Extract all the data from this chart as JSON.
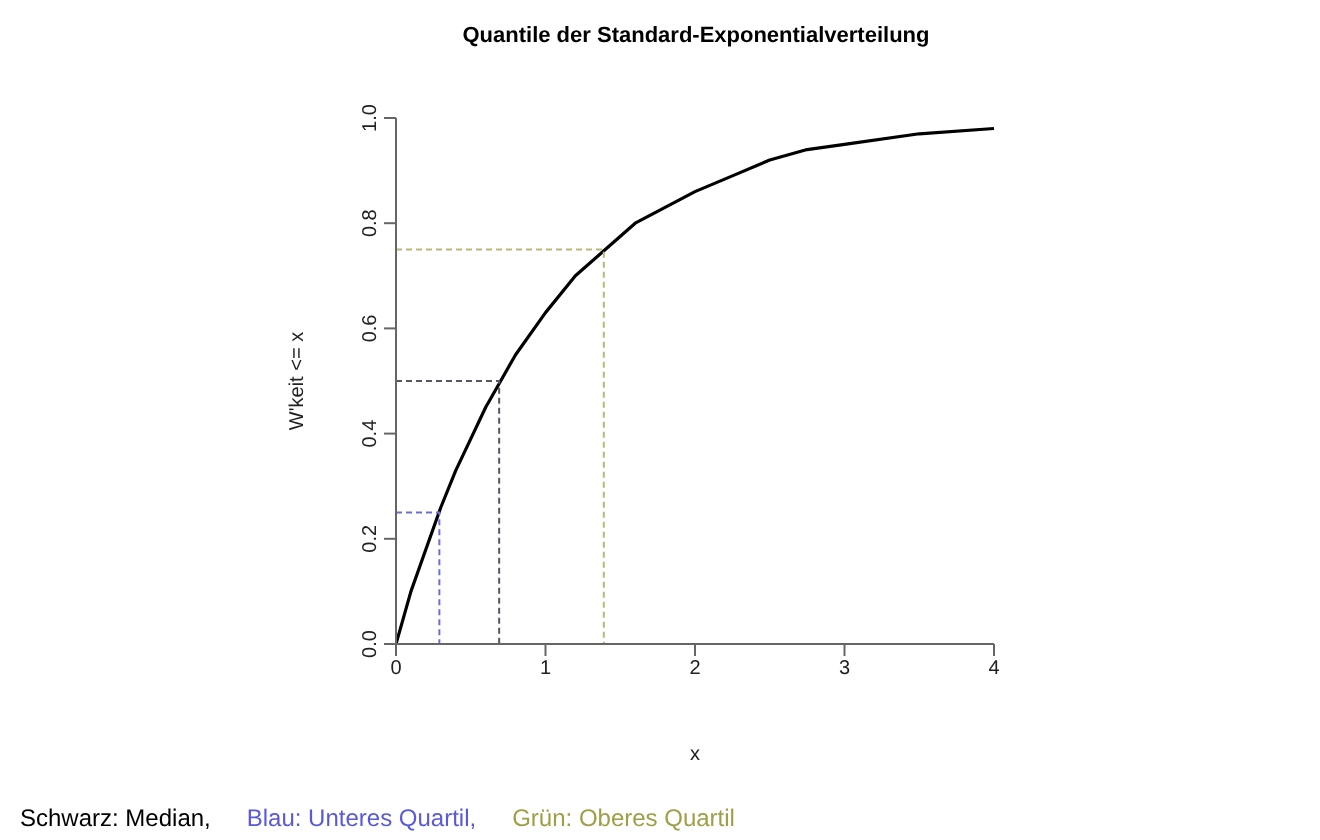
{
  "chart_data": {
    "type": "line",
    "title": "Quantile der Standard-Exponentialverteilung",
    "xlabel": "x",
    "ylabel": "W'keit <= x",
    "xlim": [
      0,
      4
    ],
    "xticks": [
      0,
      1,
      2,
      3,
      4
    ],
    "ylim": [
      0,
      1
    ],
    "yticks": [
      {
        "value": 0,
        "label": "0.0"
      },
      {
        "value": 0.2,
        "label": "0.2"
      },
      {
        "value": 0.4,
        "label": "0.4"
      },
      {
        "value": 0.6,
        "label": "0.6"
      },
      {
        "value": 0.8,
        "label": "0.8"
      },
      {
        "value": 1,
        "label": "1.0"
      }
    ],
    "marker": "none",
    "series": [
      {
        "color": "#000000",
        "line_style": "solid",
        "x": [
          0,
          0.1,
          0.2,
          0.3,
          0.4,
          0.5,
          0.6,
          0.7,
          0.8,
          1,
          1.2,
          1.4,
          1.6,
          1.8,
          2,
          2.25,
          2.5,
          2.75,
          3,
          3.5,
          4
        ],
        "values": [
          0,
          0.1,
          0.18,
          0.26,
          0.33,
          0.39,
          0.45,
          0.5,
          0.55,
          0.63,
          0.7,
          0.75,
          0.8,
          0.83,
          0.86,
          0.89,
          0.92,
          0.94,
          0.95,
          0.97,
          0.98
        ]
      },
      {
        "color": "#555566",
        "line_style": "dashed",
        "x": [
          0,
          0.69,
          0.69
        ],
        "values": [
          0.5,
          0.5,
          0
        ]
      },
      {
        "color": "#6e6ed2",
        "line_style": "dashed",
        "x": [
          0,
          0.29,
          0.29
        ],
        "values": [
          0.25,
          0.25,
          0
        ]
      },
      {
        "color": "#b8b878",
        "line_style": "dashed",
        "x": [
          0,
          1.39,
          1.39
        ],
        "values": [
          0.75,
          0.75,
          0
        ]
      }
    ],
    "annotations": [
      "Schwarz: Median,",
      "Blau: Unteres Quartil,",
      "Grün: Oberes Quartil"
    ]
  }
}
